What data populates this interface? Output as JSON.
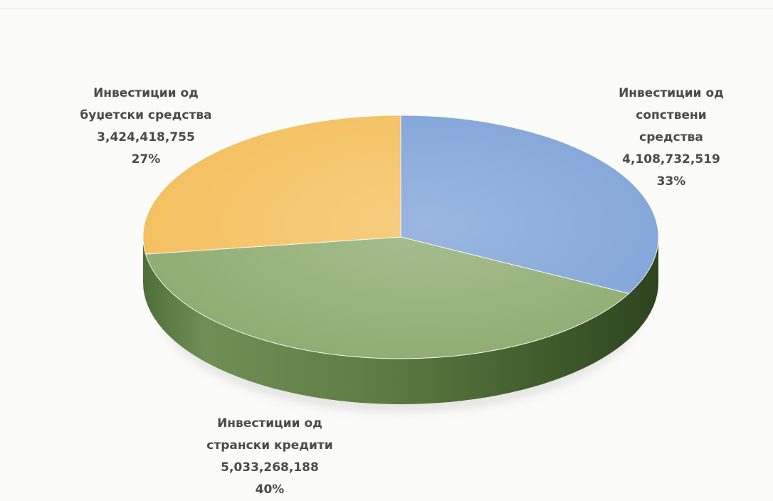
{
  "chart_data": {
    "type": "pie",
    "style": "3d",
    "slices": [
      {
        "category": "Инвестиции од сопствени средства",
        "value": 4108732519,
        "value_label": "4,108,732,519",
        "percent_label": "33%",
        "color": "#7fa3d8",
        "label_lines": [
          "Инвестиции од",
          "сопствени",
          "средства"
        ]
      },
      {
        "category": "Инвестиции од странски кредити",
        "value": 5033268188,
        "value_label": "5,033,268,188",
        "percent_label": "40%",
        "color": "#8fac71",
        "label_lines": [
          "Инвестиции од",
          "странски кредити"
        ]
      },
      {
        "category": "Инвестиции од буџетски средства",
        "value": 3424418755,
        "value_label": "3,424,418,755",
        "percent_label": "27%",
        "color": "#f4c05e",
        "label_lines": [
          "Инвестиции од",
          "буџетски средства"
        ]
      }
    ]
  }
}
